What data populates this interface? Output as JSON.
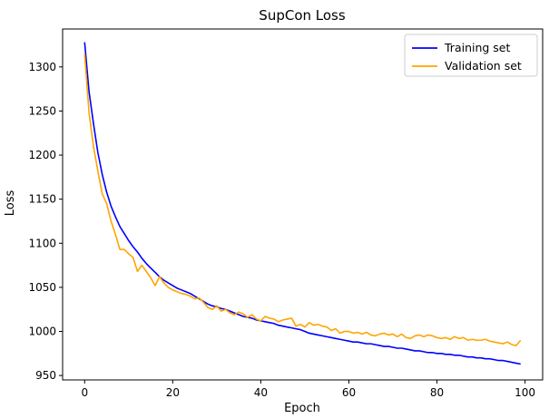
{
  "chart_data": {
    "type": "line",
    "title": "SupCon Loss",
    "xlabel": "Epoch",
    "ylabel": "Loss",
    "xlim": [
      -5,
      104
    ],
    "ylim": [
      945,
      1343
    ],
    "xticks": [
      0,
      20,
      40,
      60,
      80,
      100
    ],
    "yticks": [
      950,
      1000,
      1050,
      1100,
      1150,
      1200,
      1250,
      1300
    ],
    "grid": false,
    "legend_position": "top-right",
    "series": [
      {
        "name": "Training set",
        "color": "#0000ff",
        "y": [
          1328,
          1272,
          1236,
          1203,
          1178,
          1158,
          1142,
          1130,
          1119,
          1111,
          1103,
          1096,
          1090,
          1083,
          1077,
          1072,
          1067,
          1062,
          1058,
          1055,
          1052,
          1049,
          1047,
          1045,
          1043,
          1040,
          1037,
          1034,
          1031,
          1029,
          1028,
          1026,
          1025,
          1023,
          1021,
          1019,
          1017,
          1016,
          1015,
          1013,
          1012,
          1011,
          1010,
          1009,
          1007,
          1006,
          1005,
          1004,
          1003,
          1002,
          1000,
          998,
          997,
          996,
          995,
          994,
          993,
          992,
          991,
          990,
          989,
          988,
          988,
          987,
          986,
          986,
          985,
          984,
          983,
          983,
          982,
          981,
          981,
          980,
          979,
          978,
          978,
          977,
          976,
          976,
          975,
          975,
          974,
          974,
          973,
          973,
          972,
          971,
          971,
          970,
          970,
          969,
          969,
          968,
          967,
          967,
          966,
          965,
          964,
          963
        ]
      },
      {
        "name": "Validation set",
        "color": "#ffa500",
        "y": [
          1315,
          1248,
          1210,
          1182,
          1156,
          1145,
          1125,
          1110,
          1093,
          1093,
          1088,
          1084,
          1068,
          1075,
          1068,
          1061,
          1052,
          1062,
          1055,
          1050,
          1047,
          1045,
          1043,
          1042,
          1040,
          1037,
          1038,
          1033,
          1027,
          1025,
          1029,
          1023,
          1025,
          1021,
          1019,
          1022,
          1020,
          1016,
          1019,
          1014,
          1012,
          1017,
          1015,
          1014,
          1011,
          1013,
          1014,
          1015,
          1006,
          1008,
          1005,
          1010,
          1007,
          1008,
          1006,
          1005,
          1001,
          1003,
          998,
          1000,
          1000,
          998,
          999,
          997,
          999,
          996,
          995,
          997,
          998,
          996,
          997,
          994,
          997,
          993,
          992,
          995,
          996,
          994,
          996,
          995,
          993,
          992,
          993,
          991,
          994,
          992,
          993,
          990,
          991,
          990,
          990,
          991,
          989,
          988,
          987,
          986,
          988,
          985,
          984,
          990
        ]
      }
    ]
  }
}
